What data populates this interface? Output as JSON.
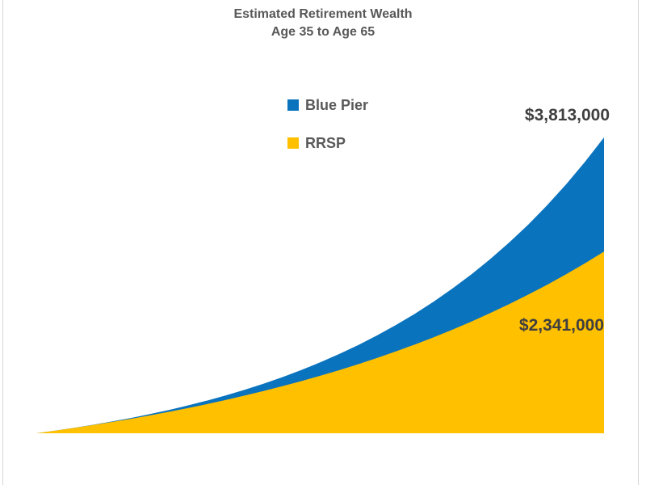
{
  "slide": {
    "title_line1": "Estimated Retirement Wealth",
    "title_line2": "Age 35 to Age 65"
  },
  "legend": {
    "position": "top-center",
    "items": [
      {
        "label": "Blue Pier",
        "color": "#0a73be"
      },
      {
        "label": "RRSP",
        "color": "#ffc000"
      }
    ]
  },
  "labels": {
    "blue_pier_end": "$3,813,000",
    "rrsp_end": "$2,341,000"
  },
  "colors": {
    "blue_series": "#0a73be",
    "yellow_series": "#ffc000",
    "title_text": "#595959",
    "value_label_text": "#3f3f3f"
  },
  "chart_data": {
    "type": "area",
    "title": "Estimated Retirement Wealth",
    "subtitle": "Age 35 to Age 65",
    "xlabel": "",
    "ylabel": "",
    "x": [
      35,
      36,
      37,
      38,
      39,
      40,
      41,
      42,
      43,
      44,
      45,
      46,
      47,
      48,
      49,
      50,
      51,
      52,
      53,
      54,
      55,
      56,
      57,
      58,
      59,
      60,
      61,
      62,
      63,
      64,
      65
    ],
    "ylim": [
      0,
      3813000
    ],
    "grid": false,
    "axes_visible": false,
    "legend_position": "top-center",
    "series": [
      {
        "name": "Blue Pier",
        "color": "#0a73be",
        "end_label": "$3,813,000",
        "end_value": 3813000,
        "values": [
          0,
          34000,
          70000,
          109000,
          152000,
          197000,
          247000,
          300000,
          358000,
          420000,
          488000,
          560000,
          639000,
          723000,
          815000,
          914000,
          1021000,
          1136000,
          1261000,
          1395000,
          1540000,
          1697000,
          1867000,
          2050000,
          2247000,
          2461000,
          2691000,
          2940000,
          3209000,
          3500000,
          3813000
        ]
      },
      {
        "name": "RRSP",
        "color": "#ffc000",
        "end_label": "$2,341,000",
        "end_value": 2341000,
        "values": [
          0,
          34000,
          69000,
          106000,
          146000,
          187000,
          230000,
          276000,
          324000,
          375000,
          428000,
          485000,
          544000,
          606000,
          672000,
          741000,
          813000,
          890000,
          970000,
          1055000,
          1144000,
          1238000,
          1337000,
          1441000,
          1551000,
          1666000,
          1788000,
          1915000,
          2050000,
          2192000,
          2341000
        ]
      }
    ]
  }
}
